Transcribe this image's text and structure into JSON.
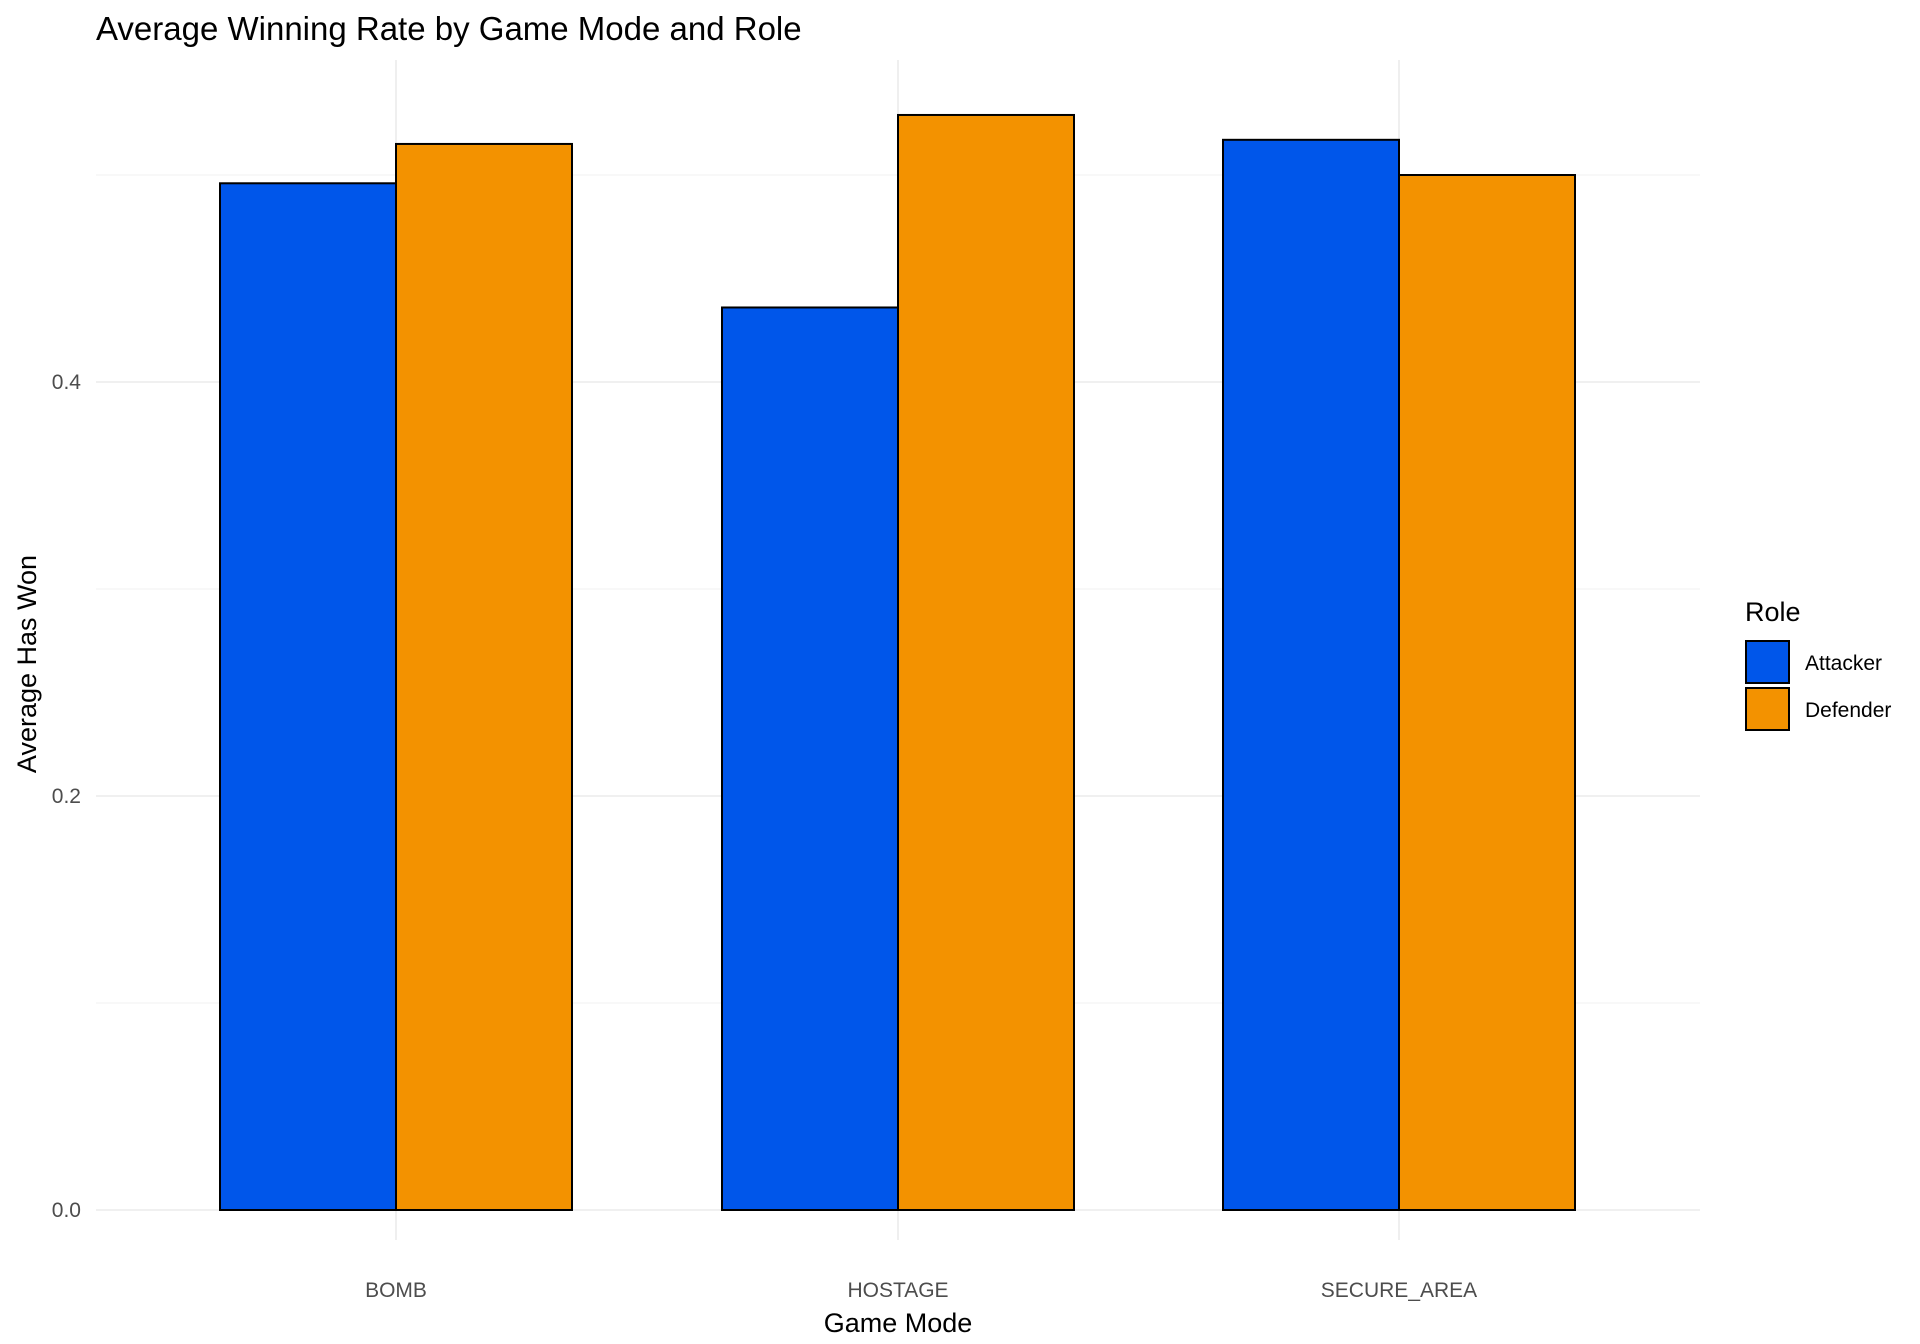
{
  "chart_data": {
    "type": "bar",
    "title": "Average Winning Rate by Game Mode and Role",
    "xlabel": "Game Mode",
    "ylabel": "Average Has Won",
    "categories": [
      "BOMB",
      "HOSTAGE",
      "SECURE_AREA"
    ],
    "series": [
      {
        "name": "Attacker",
        "color": "#0056ea",
        "values": [
          0.496,
          0.436,
          0.517
        ]
      },
      {
        "name": "Defender",
        "color": "#f39200",
        "values": [
          0.515,
          0.529,
          0.5
        ]
      }
    ],
    "ylim": [
      0,
      0.5555
    ],
    "yticks": [
      0.0,
      0.2,
      0.4
    ],
    "ytick_labels": [
      "0.0",
      "0.2",
      "0.4"
    ],
    "grid": true,
    "legend": {
      "title": "Role",
      "position": "right"
    }
  }
}
